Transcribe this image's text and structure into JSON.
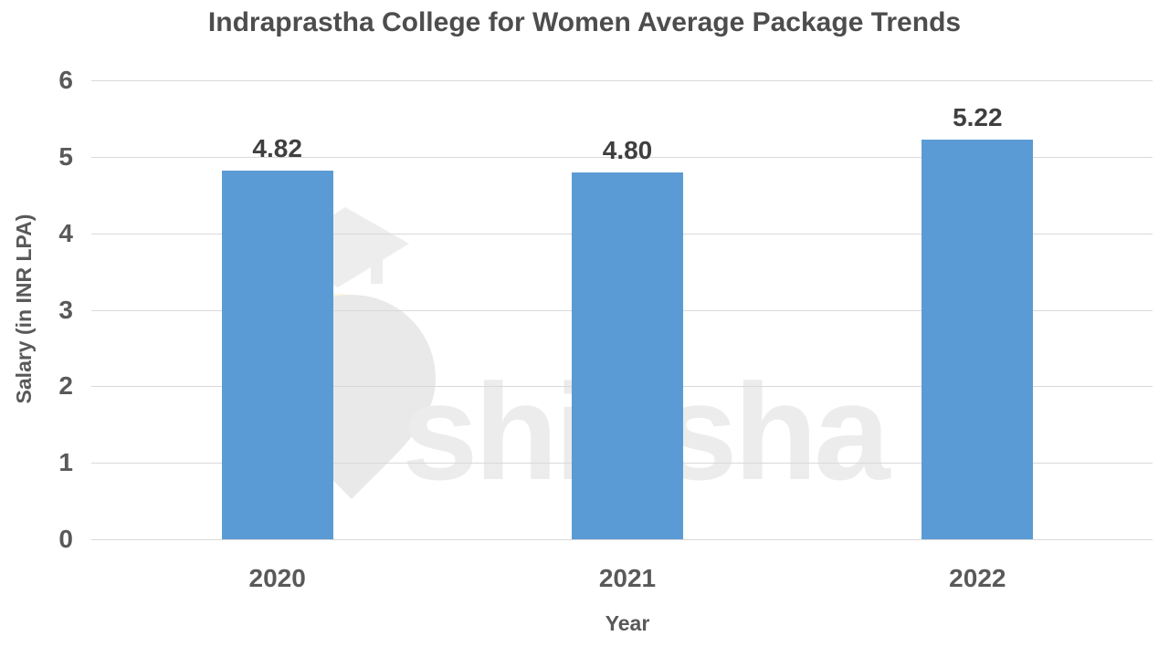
{
  "chart_data": {
    "type": "bar",
    "title": "Indraprastha College for Women Average Package Trends",
    "categories": [
      "2020",
      "2021",
      "2022"
    ],
    "values": [
      4.82,
      4.8,
      5.22
    ],
    "data_labels": [
      "4.82",
      "4.80",
      "5.22"
    ],
    "xlabel": "Year",
    "ylabel": "Salary (in INR LPA)",
    "ylim": [
      0,
      6
    ],
    "yticks": [
      0,
      1,
      2,
      3,
      4,
      5,
      6
    ],
    "grid": true,
    "legend_position": "none",
    "bar_color": "#5B9BD5"
  },
  "watermark": {
    "text": "shiksha"
  },
  "colors": {
    "background": "#FFFFFF",
    "bar": "#5B9BD5",
    "gridline": "#D9D9D9",
    "title_text": "#4D4D4D",
    "tick_text": "#595959",
    "data_label_text": "#3F3F3F",
    "watermark_gray": "#ECECEC",
    "watermark_pin_gray": "#E9E9E9",
    "watermark_yellow": "#FCF5DE"
  }
}
